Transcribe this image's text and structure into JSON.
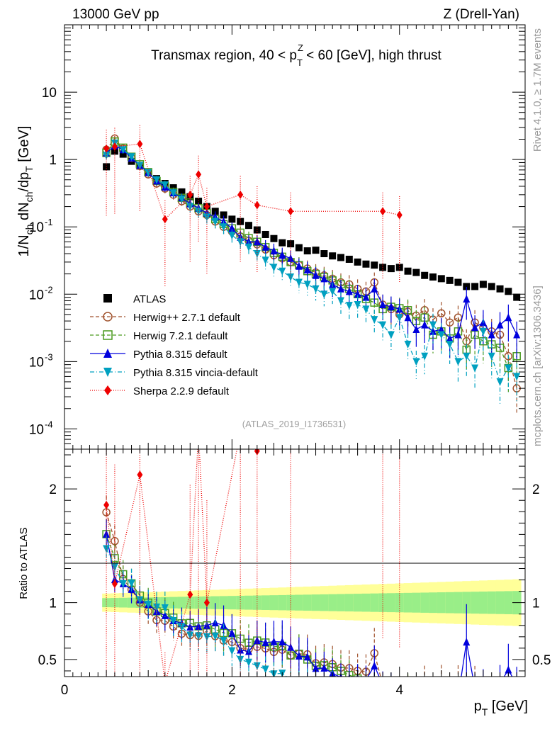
{
  "header": {
    "left": "13000 GeV pp",
    "right": "Z (Drell-Yan)"
  },
  "side": {
    "rivet": "Rivet 4.1.0, ≥ 1.7M events",
    "mcplots": "mcplots.cern.ch [arXiv:1306.3436]"
  },
  "chart_data": {
    "type": "scatter",
    "title": "Transmax region, 40 < p_T^Z < 60 [GeV], high thrust",
    "analysis_tag": "(ATLAS_2019_I1736531)",
    "xlabel": "p_T [GeV]",
    "ylabel": "1/N_ch dN_ch/dp_T [GeV]",
    "ratio_ylabel": "Ratio to ATLAS",
    "xlim": [
      0,
      5.5
    ],
    "ylim_log": [
      5e-05,
      100
    ],
    "ratio_ylim": [
      0.35,
      2.35
    ],
    "x_ticks": [
      "0",
      "2",
      "4"
    ],
    "y_ticks_main": [
      "10^-4",
      "10^-3",
      "10^-2",
      "10^-1",
      "1",
      "10"
    ],
    "y_ticks_ratio": [
      "0.5",
      "1",
      "2"
    ],
    "x": [
      0.5,
      0.6,
      0.7,
      0.8,
      0.9,
      1.0,
      1.1,
      1.2,
      1.3,
      1.4,
      1.5,
      1.6,
      1.7,
      1.8,
      1.9,
      2.0,
      2.1,
      2.2,
      2.3,
      2.4,
      2.5,
      2.6,
      2.7,
      2.8,
      2.9,
      3.0,
      3.1,
      3.2,
      3.3,
      3.4,
      3.5,
      3.6,
      3.7,
      3.8,
      3.9,
      4.0,
      4.1,
      4.2,
      4.3,
      4.4,
      4.5,
      4.6,
      4.7,
      4.8,
      4.9,
      5.0,
      5.1,
      5.2,
      5.3,
      5.4
    ],
    "ref_band_green": 0.04,
    "ref_band_yellow": 0.08,
    "series": [
      {
        "name": "ATLAS",
        "color": "#000000",
        "marker": "square-filled",
        "dash": "none",
        "values": [
          0.78,
          1.33,
          1.2,
          0.94,
          0.8,
          0.65,
          0.52,
          0.44,
          0.38,
          0.33,
          0.28,
          0.24,
          0.2,
          0.17,
          0.15,
          0.13,
          0.12,
          0.105,
          0.09,
          0.077,
          0.067,
          0.058,
          0.056,
          0.049,
          0.044,
          0.045,
          0.04,
          0.037,
          0.035,
          0.033,
          0.03,
          0.028,
          0.027,
          0.025,
          0.024,
          0.025,
          0.022,
          0.021,
          0.019,
          0.018,
          0.017,
          0.016,
          0.015,
          0.013,
          0.013,
          0.014,
          0.013,
          0.012,
          0.011,
          0.009
        ]
      },
      {
        "name": "Herwig++ 2.7.1 default",
        "color": "#a0522d",
        "marker": "circle-open",
        "dash": "5,3",
        "values": [
          1.4,
          2.05,
          1.45,
          1.05,
          0.8,
          0.6,
          0.44,
          0.37,
          0.3,
          0.24,
          0.2,
          0.17,
          0.15,
          0.12,
          0.1,
          0.085,
          0.072,
          0.062,
          0.055,
          0.046,
          0.038,
          0.034,
          0.03,
          0.027,
          0.024,
          0.021,
          0.019,
          0.017,
          0.015,
          0.014,
          0.012,
          0.011,
          0.015,
          0.007,
          0.006,
          0.005,
          0.0055,
          0.0048,
          0.0058,
          0.0042,
          0.0052,
          0.0038,
          0.0045,
          0.002,
          0.0038,
          0.0032,
          0.0028,
          0.0025,
          0.0012,
          0.0004
        ]
      },
      {
        "name": "Herwig 7.2.1 default",
        "color": "#4a9a1f",
        "marker": "square-open",
        "dash": "5,3",
        "values": [
          1.25,
          1.85,
          1.5,
          1.1,
          0.85,
          0.65,
          0.48,
          0.4,
          0.33,
          0.27,
          0.23,
          0.19,
          0.16,
          0.13,
          0.11,
          0.095,
          0.082,
          0.068,
          0.06,
          0.05,
          0.041,
          0.036,
          0.03,
          0.027,
          0.022,
          0.02,
          0.018,
          0.016,
          0.014,
          0.012,
          0.01,
          0.0085,
          0.0075,
          0.006,
          0.0065,
          0.0062,
          0.0058,
          0.004,
          0.0045,
          0.0025,
          0.0028,
          0.0022,
          0.0028,
          0.0015,
          0.0025,
          0.002,
          0.0018,
          0.0016,
          0.0008,
          0.0012
        ]
      },
      {
        "name": "Pythia 8.315 default",
        "color": "#0000dd",
        "marker": "triangle-up",
        "dash": "none",
        "values": [
          1.25,
          1.6,
          1.4,
          1.05,
          0.82,
          0.64,
          0.48,
          0.39,
          0.32,
          0.27,
          0.22,
          0.19,
          0.16,
          0.14,
          0.12,
          0.095,
          0.07,
          0.06,
          0.06,
          0.05,
          0.044,
          0.038,
          0.034,
          0.026,
          0.023,
          0.019,
          0.017,
          0.014,
          0.012,
          0.011,
          0.01,
          0.009,
          0.012,
          0.007,
          0.0065,
          0.006,
          0.0045,
          0.003,
          0.0035,
          0.0028,
          0.003,
          0.0022,
          0.0025,
          0.0085,
          0.0032,
          0.0038,
          0.0025,
          0.0035,
          0.0045,
          0.0025
        ]
      },
      {
        "name": "Pythia 8.315 vincia-default",
        "color": "#00a0c0",
        "marker": "triangle-down",
        "dash": "6,3,1,3",
        "values": [
          1.15,
          1.75,
          1.4,
          1.1,
          0.82,
          0.64,
          0.5,
          0.42,
          0.32,
          0.26,
          0.2,
          0.17,
          0.14,
          0.12,
          0.1,
          0.075,
          0.06,
          0.05,
          0.04,
          0.032,
          0.025,
          0.022,
          0.018,
          0.015,
          0.014,
          0.012,
          0.01,
          0.011,
          0.008,
          0.0068,
          0.007,
          0.006,
          0.0042,
          0.0035,
          0.0025,
          0.0045,
          0.0018,
          0.001,
          0.0012,
          0.0035,
          0.0025,
          0.0018,
          0.001,
          0.0012,
          0.0008,
          0.0028,
          0.0012,
          0.0005,
          0.0008,
          0.0006
        ]
      },
      {
        "name": "Sherpa 2.2.9 default",
        "color": "#ee0000",
        "marker": "diamond",
        "dash": "1,2",
        "x": [
          0.5,
          0.6,
          0.9,
          1.2,
          1.5,
          1.6,
          1.7,
          2.1,
          2.3,
          2.7,
          3.8,
          4.0
        ],
        "values": [
          1.45,
          1.55,
          1.7,
          0.13,
          0.3,
          0.6,
          0.2,
          0.3,
          0.21,
          0.17,
          0.17,
          0.15
        ]
      }
    ]
  }
}
